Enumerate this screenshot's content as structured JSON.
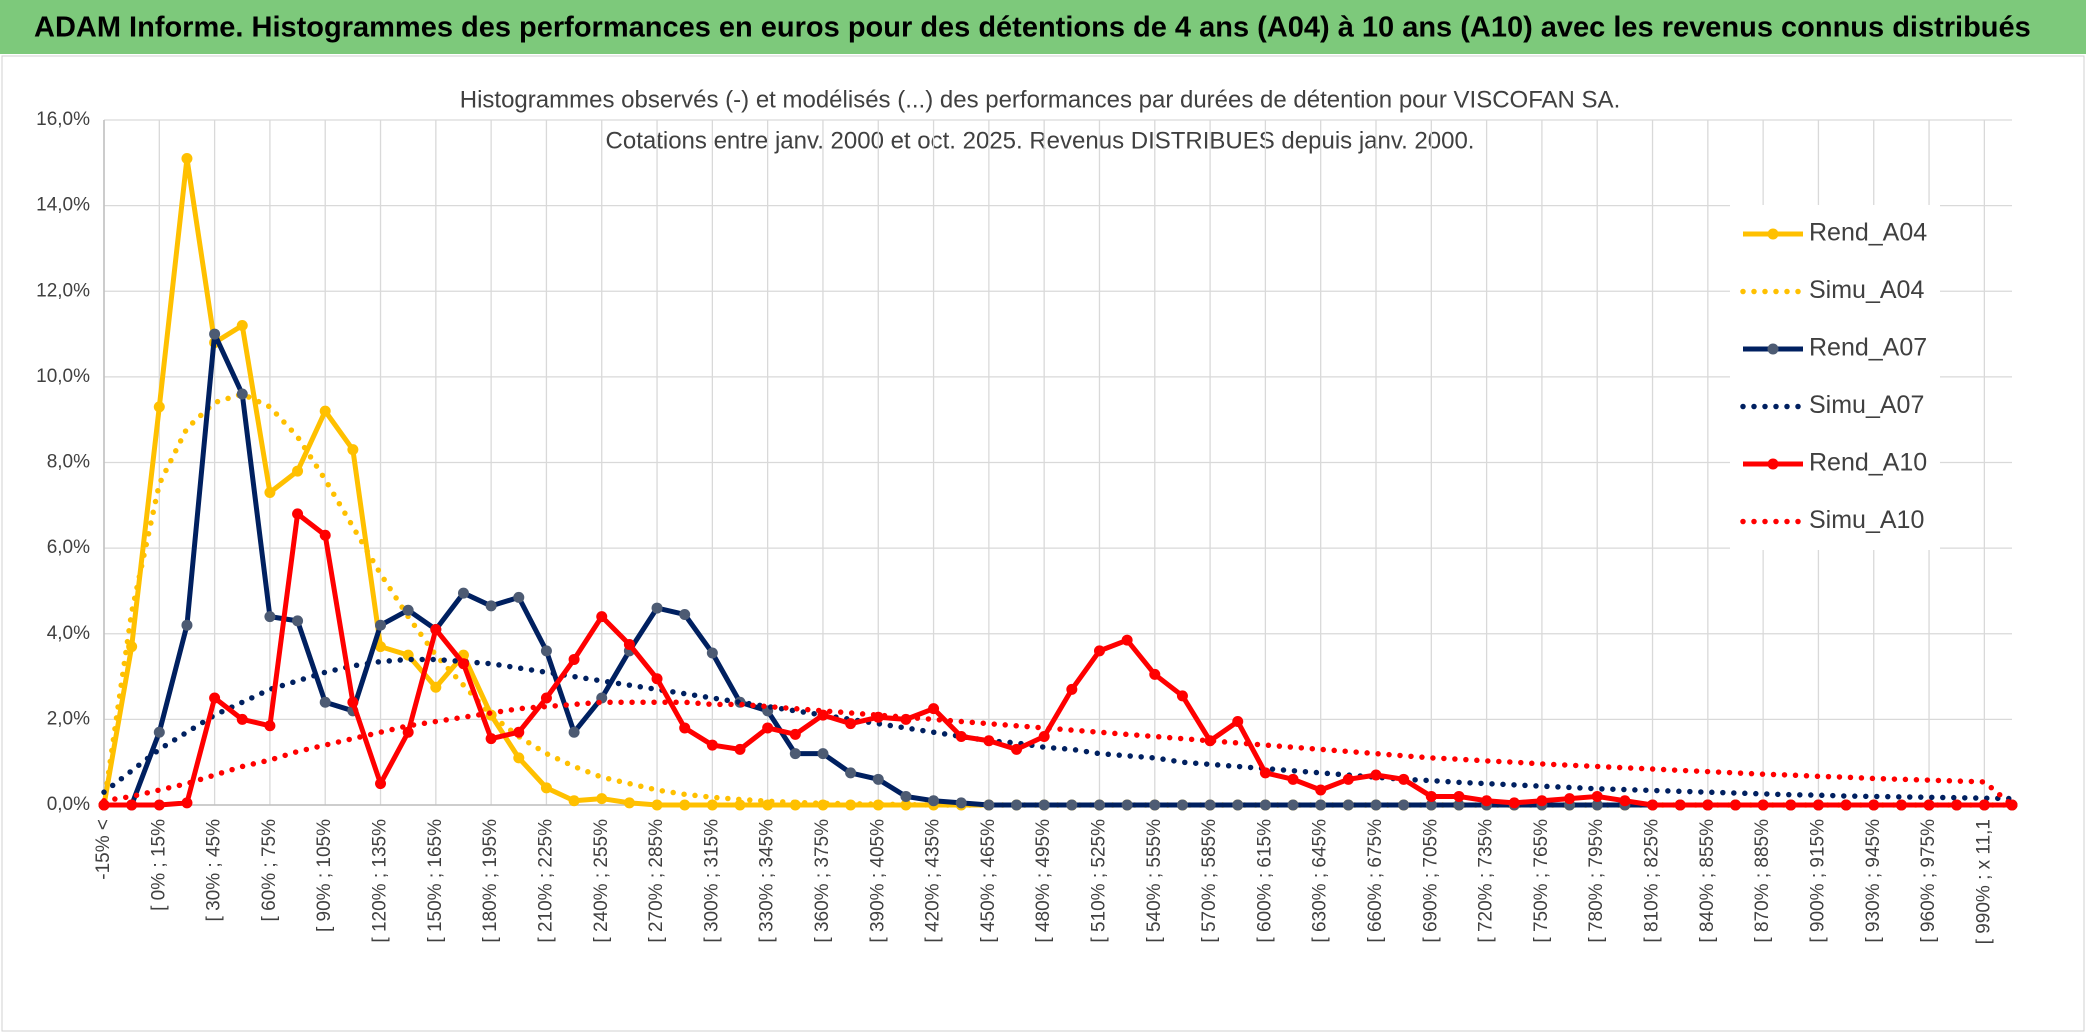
{
  "chart_data": {
    "type": "line",
    "header": "ADAM Informe. Histogrammes des performances en euros pour des détentions de 4 ans (A04) à 10 ans (A10) avec les revenus connus distribués",
    "title": "Histogrammes observés (-) et modélisés (...) des performances par durées de détention pour VISCOFAN SA.",
    "subtitle": "Cotations entre janv. 2000 et oct. 2025. Revenus DISTRIBUES depuis janv. 2000.",
    "categories": [
      "-15% <",
      null,
      "[ 0% ; 15%",
      null,
      "[ 30% ; 45%",
      null,
      "[ 60% ; 75%",
      null,
      "[ 90% ; 105%",
      null,
      "[ 120% ; 135%",
      null,
      "[ 150% ; 165%",
      null,
      "[ 180% ; 195%",
      null,
      "[ 210% ; 225%",
      null,
      "[ 240% ; 255%",
      null,
      "[ 270% ; 285%",
      null,
      "[ 300% ; 315%",
      null,
      "[ 330% ; 345%",
      null,
      "[ 360% ; 375%",
      null,
      "[ 390% ; 405%",
      null,
      "[ 420% ; 435%",
      null,
      "[ 450% ; 465%",
      null,
      "[ 480% ; 495%",
      null,
      "[ 510% ; 525%",
      null,
      "[ 540% ; 555%",
      null,
      "[ 570% ; 585%",
      null,
      "[ 600% ; 615%",
      null,
      "[ 630% ; 645%",
      null,
      "[ 660% ; 675%",
      null,
      "[ 690% ; 705%",
      null,
      "[ 720% ; 735%",
      null,
      "[ 750% ; 765%",
      null,
      "[ 780% ; 795%",
      null,
      "[ 810% ; 825%",
      null,
      "[ 840% ; 855%",
      null,
      "[ 870% ; 885%",
      null,
      "[ 900% ; 915%",
      null,
      "[ 930% ; 945%",
      null,
      "[ 960% ; 975%",
      null,
      "[ 990% ; x 11,1",
      null
    ],
    "ylim": [
      0,
      16
    ],
    "yticks": [
      {
        "value": 0,
        "label": "0,0%"
      },
      {
        "value": 2,
        "label": "2,0%"
      },
      {
        "value": 4,
        "label": "4,0%"
      },
      {
        "value": 6,
        "label": "6,0%"
      },
      {
        "value": 8,
        "label": "8,0%"
      },
      {
        "value": 10,
        "label": "10,0%"
      },
      {
        "value": 12,
        "label": "12,0%"
      },
      {
        "value": 14,
        "label": "14,0%"
      },
      {
        "value": 16,
        "label": "16,0%"
      }
    ],
    "grid": true,
    "legend": "right",
    "series": [
      {
        "name": "Rend_A04",
        "color": "#FFC000",
        "line_style": "solid",
        "marker": true,
        "marker_color": "#FFC000",
        "values": [
          0,
          3.7,
          9.3,
          15.1,
          10.8,
          11.2,
          7.3,
          7.8,
          9.2,
          8.3,
          3.7,
          3.5,
          2.75,
          3.5,
          2.1,
          1.1,
          0.4,
          0.1,
          0.15,
          0.05,
          0,
          0,
          0,
          0,
          0,
          0,
          0,
          0,
          0,
          0,
          0,
          0,
          0,
          0,
          0,
          0,
          0,
          0,
          0,
          0,
          0,
          0,
          0,
          0,
          0,
          0,
          0,
          0,
          0,
          0,
          0,
          0,
          0,
          0,
          0,
          0,
          0,
          0,
          0,
          0,
          0,
          0,
          0,
          0,
          0,
          0,
          0,
          0,
          0,
          0
        ]
      },
      {
        "name": "Simu_A04",
        "color": "#FFC000",
        "line_style": "dotted",
        "marker": false,
        "values": [
          0,
          4.5,
          7.5,
          8.8,
          9.4,
          9.6,
          9.3,
          8.6,
          7.6,
          6.5,
          5.4,
          4.4,
          3.5,
          2.8,
          2.1,
          1.6,
          1.2,
          0.9,
          0.65,
          0.5,
          0.35,
          0.25,
          0.18,
          0.13,
          0.09,
          0.06,
          0.04,
          0.03,
          0.02,
          0.01,
          0,
          0,
          0,
          0,
          0,
          0,
          0,
          0,
          0,
          0,
          0,
          0,
          0,
          0,
          0,
          0,
          0,
          0,
          0,
          0,
          0,
          0,
          0,
          0,
          0,
          0,
          0,
          0,
          0,
          0,
          0,
          0,
          0,
          0,
          0,
          0,
          0,
          0,
          0,
          0
        ]
      },
      {
        "name": "Rend_A07",
        "color": "#002060",
        "line_style": "solid",
        "marker": true,
        "marker_color": "#4d5b73",
        "values": [
          0,
          0,
          1.7,
          4.2,
          11.0,
          9.6,
          4.4,
          4.3,
          2.4,
          2.2,
          4.2,
          4.55,
          4.1,
          4.95,
          4.65,
          4.85,
          3.6,
          1.7,
          2.5,
          3.6,
          4.6,
          4.45,
          3.55,
          2.4,
          2.2,
          1.2,
          1.2,
          0.75,
          0.6,
          0.2,
          0.1,
          0.05,
          0,
          0,
          0,
          0,
          0,
          0,
          0,
          0,
          0,
          0,
          0,
          0,
          0,
          0,
          0,
          0,
          0,
          0,
          0,
          0,
          0,
          0,
          0,
          0,
          0,
          0,
          0,
          0,
          0,
          0,
          0,
          0,
          0,
          0,
          0,
          0,
          0,
          0
        ]
      },
      {
        "name": "Simu_A07",
        "color": "#002060",
        "line_style": "dotted",
        "marker": false,
        "values": [
          0.3,
          0.8,
          1.3,
          1.7,
          2.1,
          2.4,
          2.7,
          2.9,
          3.1,
          3.25,
          3.35,
          3.4,
          3.4,
          3.35,
          3.3,
          3.2,
          3.1,
          3.0,
          2.9,
          2.8,
          2.7,
          2.6,
          2.5,
          2.4,
          2.3,
          2.2,
          2.1,
          2.0,
          1.9,
          1.8,
          1.7,
          1.6,
          1.5,
          1.45,
          1.35,
          1.3,
          1.2,
          1.15,
          1.1,
          1.0,
          0.95,
          0.9,
          0.85,
          0.8,
          0.75,
          0.7,
          0.65,
          0.6,
          0.57,
          0.53,
          0.5,
          0.47,
          0.44,
          0.41,
          0.38,
          0.36,
          0.34,
          0.32,
          0.3,
          0.28,
          0.26,
          0.24,
          0.23,
          0.21,
          0.2,
          0.19,
          0.18,
          0.17,
          0.16,
          0.15
        ]
      },
      {
        "name": "Rend_A10",
        "color": "#FF0000",
        "line_style": "solid",
        "marker": true,
        "marker_color": "#FF0000",
        "values": [
          0,
          0,
          0,
          0.05,
          2.5,
          2.0,
          1.85,
          6.8,
          6.3,
          2.4,
          0.5,
          1.7,
          4.1,
          3.3,
          1.55,
          1.7,
          2.5,
          3.4,
          4.4,
          3.75,
          2.95,
          1.8,
          1.4,
          1.3,
          1.8,
          1.65,
          2.1,
          1.9,
          2.05,
          2.0,
          2.25,
          1.6,
          1.5,
          1.3,
          1.6,
          2.7,
          3.6,
          3.85,
          3.05,
          2.55,
          1.5,
          1.95,
          0.75,
          0.6,
          0.35,
          0.6,
          0.7,
          0.6,
          0.2,
          0.2,
          0.1,
          0.05,
          0.1,
          0.15,
          0.2,
          0.1,
          0,
          0,
          0,
          0,
          0,
          0,
          0,
          0,
          0,
          0,
          0,
          0,
          0,
          0
        ]
      },
      {
        "name": "Simu_A10",
        "color": "#FF0000",
        "line_style": "dotted",
        "marker": false,
        "values": [
          0.1,
          0.2,
          0.35,
          0.5,
          0.7,
          0.9,
          1.05,
          1.25,
          1.4,
          1.55,
          1.7,
          1.85,
          1.95,
          2.05,
          2.15,
          2.25,
          2.3,
          2.35,
          2.4,
          2.4,
          2.4,
          2.4,
          2.35,
          2.35,
          2.3,
          2.25,
          2.2,
          2.15,
          2.1,
          2.05,
          2.0,
          1.95,
          1.9,
          1.85,
          1.8,
          1.75,
          1.7,
          1.65,
          1.6,
          1.55,
          1.5,
          1.45,
          1.4,
          1.35,
          1.3,
          1.25,
          1.2,
          1.15,
          1.1,
          1.07,
          1.03,
          1.0,
          0.96,
          0.93,
          0.9,
          0.87,
          0.84,
          0.81,
          0.78,
          0.75,
          0.72,
          0.7,
          0.67,
          0.65,
          0.62,
          0.6,
          0.58,
          0.56,
          0.54,
          0
        ]
      }
    ]
  }
}
